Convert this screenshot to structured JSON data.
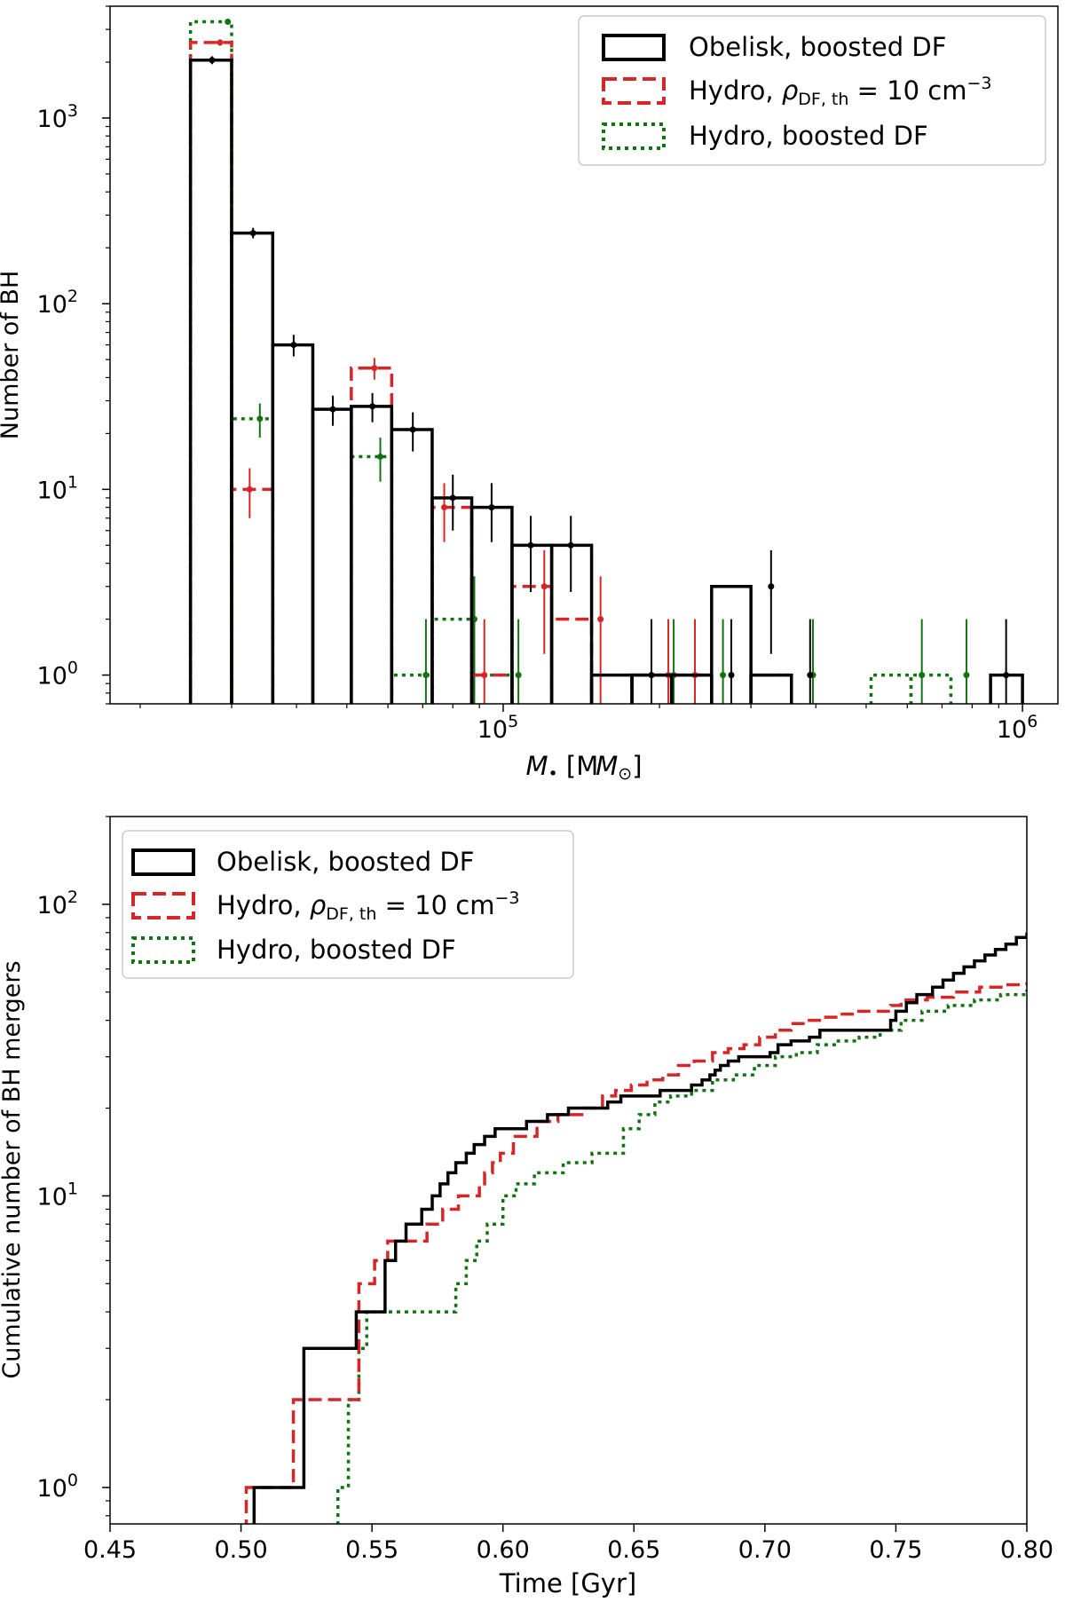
{
  "chart_data": [
    {
      "type": "histogram",
      "xscale": "log",
      "yscale": "log",
      "xlabel_main": "M",
      "xlabel_sub": "•",
      "xlabel_unit_open": " [M",
      "xlabel_unit_sub": "⊙",
      "xlabel_unit_close": "]",
      "ylabel": "Number of BH",
      "xlim": [
        17500,
        1170000
      ],
      "ylim": [
        0.7,
        4000
      ],
      "xticks": [
        {
          "value": 100000,
          "base": "10",
          "exp": "5"
        },
        {
          "value": 1000000,
          "base": "10",
          "exp": "6"
        }
      ],
      "yticks": [
        {
          "value": 1,
          "base": "10",
          "exp": "0"
        },
        {
          "value": 10,
          "base": "10",
          "exp": "1"
        },
        {
          "value": 100,
          "base": "10",
          "exp": "2"
        },
        {
          "value": 1000,
          "base": "10",
          "exp": "3"
        }
      ],
      "legend_position": "top-right",
      "legend": [
        {
          "label": "Obelisk, boosted DF",
          "style": "solid",
          "color": "#000000"
        },
        {
          "label_parts": [
            "Hydro, ",
            "ρ",
            "DF, th",
            " = 10 cm",
            "−3"
          ],
          "style": "dashed",
          "color": "#d62728"
        },
        {
          "label": "Hydro, boosted DF",
          "style": "dotted",
          "color": "#137313"
        }
      ],
      "series": [
        {
          "name": "Obelisk, boosted DF",
          "color": "#000000",
          "style": "solid",
          "edges": [
            25000,
            30000,
            36000,
            43000,
            51000,
            61000,
            73000,
            87000,
            104000,
            124000,
            148000,
            177000,
            211000,
            252000,
            300000,
            359000,
            428000,
            511000,
            610000,
            728000,
            868000,
            1000000
          ],
          "values": [
            2050,
            240,
            60,
            27,
            28,
            21,
            9,
            8,
            5,
            5,
            1,
            1,
            1,
            3,
            1,
            null,
            null,
            null,
            null,
            null,
            1
          ],
          "errors": [
            {
              "x": 27500,
              "y": 2050,
              "lo": 1950,
              "hi": 2150
            },
            {
              "x": 33000,
              "y": 240,
              "lo": 225,
              "hi": 256
            },
            {
              "x": 39500,
              "y": 60,
              "lo": 52,
              "hi": 68
            },
            {
              "x": 47000,
              "y": 27,
              "lo": 22,
              "hi": 32
            },
            {
              "x": 56000,
              "y": 28,
              "lo": 23,
              "hi": 33
            },
            {
              "x": 67000,
              "y": 21,
              "lo": 16,
              "hi": 26
            },
            {
              "x": 80000,
              "y": 9,
              "lo": 6,
              "hi": 12
            },
            {
              "x": 95000,
              "y": 8,
              "lo": 5.2,
              "hi": 10.8
            },
            {
              "x": 113000,
              "y": 5,
              "lo": 2.8,
              "hi": 7.2
            },
            {
              "x": 135000,
              "y": 5,
              "lo": 2.8,
              "hi": 7.2
            },
            {
              "x": 193000,
              "y": 1,
              "lo": 0.7,
              "hi": 2
            },
            {
              "x": 275000,
              "y": 1,
              "lo": 0.7,
              "hi": 2
            },
            {
              "x": 328000,
              "y": 3,
              "lo": 1.3,
              "hi": 4.7
            },
            {
              "x": 390000,
              "y": 1,
              "lo": 0.7,
              "hi": 2
            },
            {
              "x": 930000,
              "y": 1,
              "lo": 0.7,
              "hi": 2
            }
          ]
        },
        {
          "name": "Hydro, rho_DF,th = 10 cm^-3",
          "color": "#d62728",
          "style": "dashed",
          "edges": [
            25000,
            30000,
            36000,
            43000,
            51000,
            61000,
            73000,
            87000,
            104000,
            124000,
            148000,
            177000,
            211000,
            252000,
            300000,
            359000,
            428000,
            511000,
            610000,
            728000,
            868000,
            1000000
          ],
          "values": [
            2550,
            10,
            null,
            null,
            45,
            null,
            8,
            1,
            3,
            2,
            null,
            1,
            1,
            null,
            null,
            null,
            null,
            null,
            null,
            null,
            null
          ],
          "errors": [
            {
              "x": 28500,
              "y": 2550,
              "lo": 2450,
              "hi": 2650
            },
            {
              "x": 32500,
              "y": 10,
              "lo": 7,
              "hi": 13
            },
            {
              "x": 56500,
              "y": 45,
              "lo": 39,
              "hi": 51
            },
            {
              "x": 77000,
              "y": 8,
              "lo": 5.2,
              "hi": 10.8
            },
            {
              "x": 92000,
              "y": 1,
              "lo": 0.7,
              "hi": 2
            },
            {
              "x": 120000,
              "y": 3,
              "lo": 1.3,
              "hi": 4.7
            },
            {
              "x": 154000,
              "y": 2,
              "lo": 0.7,
              "hi": 3.4
            },
            {
              "x": 208000,
              "y": 1,
              "lo": 0.7,
              "hi": 2
            },
            {
              "x": 234000,
              "y": 1,
              "lo": 0.7,
              "hi": 2
            }
          ]
        },
        {
          "name": "Hydro, boosted DF",
          "color": "#137313",
          "style": "dotted",
          "edges": [
            25000,
            30000,
            36000,
            43000,
            51000,
            61000,
            73000,
            87000,
            104000,
            124000,
            148000,
            177000,
            211000,
            252000,
            300000,
            359000,
            428000,
            511000,
            610000,
            728000,
            868000,
            1000000
          ],
          "values": [
            3300,
            24,
            null,
            null,
            15,
            1,
            2,
            1,
            null,
            null,
            null,
            1,
            1,
            null,
            1,
            null,
            null,
            1,
            1,
            null,
            null
          ],
          "errors": [
            {
              "x": 29500,
              "y": 3300,
              "lo": 3200,
              "hi": 3400
            },
            {
              "x": 34000,
              "y": 24,
              "lo": 19,
              "hi": 29
            },
            {
              "x": 58000,
              "y": 15,
              "lo": 11,
              "hi": 19
            },
            {
              "x": 71000,
              "y": 1,
              "lo": 0.7,
              "hi": 2
            },
            {
              "x": 88000,
              "y": 2,
              "lo": 0.7,
              "hi": 3.4
            },
            {
              "x": 107000,
              "y": 1,
              "lo": 0.7,
              "hi": 2
            },
            {
              "x": 213000,
              "y": 1,
              "lo": 0.7,
              "hi": 2
            },
            {
              "x": 265000,
              "y": 1,
              "lo": 0.7,
              "hi": 2
            },
            {
              "x": 395000,
              "y": 1,
              "lo": 0.7,
              "hi": 2
            },
            {
              "x": 640000,
              "y": 1,
              "lo": 0.7,
              "hi": 2
            },
            {
              "x": 780000,
              "y": 1,
              "lo": 0.7,
              "hi": 2
            }
          ]
        }
      ]
    },
    {
      "type": "line",
      "step": true,
      "yscale": "log",
      "xlabel": "Time [Gyr]",
      "ylabel": "Cumulative number of BH mergers",
      "xlim": [
        0.45,
        0.8
      ],
      "ylim": [
        0.75,
        200
      ],
      "xticks": [
        "0.45",
        "0.50",
        "0.55",
        "0.60",
        "0.65",
        "0.70",
        "0.75",
        "0.80"
      ],
      "yticks": [
        {
          "value": 1,
          "base": "10",
          "exp": "0"
        },
        {
          "value": 10,
          "base": "10",
          "exp": "1"
        },
        {
          "value": 100,
          "base": "10",
          "exp": "2"
        }
      ],
      "legend_position": "top-left",
      "legend": [
        {
          "label": "Obelisk, boosted DF",
          "style": "solid",
          "color": "#000000"
        },
        {
          "label_parts": [
            "Hydro, ",
            "ρ",
            "DF, th",
            " = 10 cm",
            "−3"
          ],
          "style": "dashed",
          "color": "#d62728"
        },
        {
          "label": "Hydro, boosted DF",
          "style": "dotted",
          "color": "#137313"
        }
      ],
      "series": [
        {
          "name": "Obelisk, boosted DF",
          "color": "#000000",
          "style": "solid",
          "x": [
            0.505,
            0.524,
            0.544,
            0.555,
            0.559,
            0.563,
            0.569,
            0.573,
            0.576,
            0.579,
            0.582,
            0.586,
            0.589,
            0.593,
            0.597,
            0.609,
            0.617,
            0.625,
            0.64,
            0.645,
            0.66,
            0.672,
            0.676,
            0.679,
            0.681,
            0.683,
            0.686,
            0.69,
            0.702,
            0.705,
            0.71,
            0.717,
            0.721,
            0.748,
            0.75,
            0.754,
            0.758,
            0.764,
            0.768,
            0.772,
            0.776,
            0.78,
            0.784,
            0.788,
            0.792,
            0.796,
            0.8
          ],
          "y": [
            1,
            3,
            4,
            6,
            7,
            8,
            9,
            10,
            11,
            12,
            13,
            14,
            15,
            16,
            17,
            18,
            19,
            20,
            21,
            22,
            23,
            24,
            25,
            26,
            27,
            28,
            29,
            30,
            31,
            33,
            34,
            35,
            37,
            40,
            43,
            46,
            49,
            52,
            55,
            58,
            61,
            64,
            67,
            70,
            73,
            77,
            80
          ]
        },
        {
          "name": "Hydro, rho_DF,th = 10 cm^-3",
          "color": "#d62728",
          "style": "dashed",
          "x": [
            0.502,
            0.52,
            0.545,
            0.551,
            0.556,
            0.561,
            0.566,
            0.571,
            0.577,
            0.583,
            0.591,
            0.593,
            0.596,
            0.599,
            0.604,
            0.613,
            0.621,
            0.631,
            0.638,
            0.643,
            0.649,
            0.655,
            0.661,
            0.667,
            0.673,
            0.68,
            0.686,
            0.692,
            0.698,
            0.704,
            0.71,
            0.716,
            0.722,
            0.728,
            0.735,
            0.748,
            0.752,
            0.762,
            0.772,
            0.782,
            0.792,
            0.8
          ],
          "y": [
            1,
            2,
            5,
            6,
            7,
            7,
            7,
            8,
            9,
            10,
            11,
            12,
            13,
            14,
            16,
            18,
            19,
            20,
            22,
            23,
            24,
            25,
            26,
            28,
            29,
            31,
            32,
            33,
            35,
            37,
            39,
            40,
            41,
            42,
            43,
            45,
            47,
            48,
            50,
            52,
            53,
            54
          ]
        },
        {
          "name": "Hydro, boosted DF",
          "color": "#137313",
          "style": "dotted",
          "x": [
            0.537,
            0.539,
            0.541,
            0.543,
            0.545,
            0.548,
            0.582,
            0.586,
            0.59,
            0.594,
            0.6,
            0.605,
            0.612,
            0.623,
            0.634,
            0.646,
            0.652,
            0.658,
            0.664,
            0.672,
            0.68,
            0.688,
            0.696,
            0.704,
            0.712,
            0.72,
            0.728,
            0.736,
            0.744,
            0.752,
            0.76,
            0.77,
            0.78,
            0.79,
            0.8
          ],
          "y": [
            1,
            1,
            2,
            2,
            3,
            4,
            5,
            6,
            7,
            8,
            10,
            11,
            12,
            13,
            14,
            17,
            19,
            21,
            22,
            23,
            25,
            26,
            28,
            30,
            31,
            33,
            34,
            35,
            37,
            40,
            43,
            45,
            47,
            49,
            51
          ]
        }
      ]
    }
  ]
}
